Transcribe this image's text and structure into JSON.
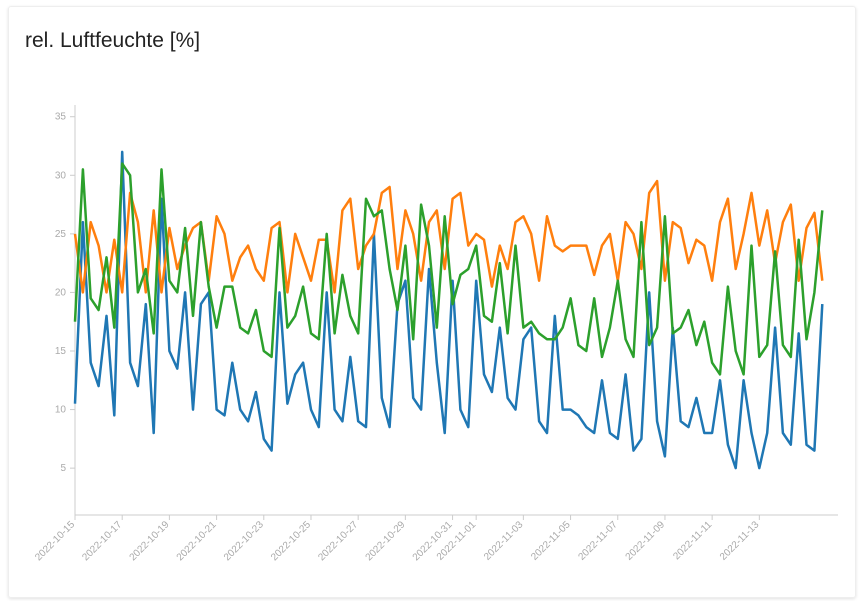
{
  "chart_data": {
    "type": "line",
    "title": "rel. Luftfeuchte [%]",
    "x": [
      "2022-10-15 00:00",
      "2022-10-15 08:00",
      "2022-10-15 16:00",
      "2022-10-16 00:00",
      "2022-10-16 08:00",
      "2022-10-16 16:00",
      "2022-10-17 00:00",
      "2022-10-17 08:00",
      "2022-10-17 16:00",
      "2022-10-18 00:00",
      "2022-10-18 08:00",
      "2022-10-18 16:00",
      "2022-10-19 00:00",
      "2022-10-19 08:00",
      "2022-10-19 16:00",
      "2022-10-20 00:00",
      "2022-10-20 08:00",
      "2022-10-20 16:00",
      "2022-10-21 00:00",
      "2022-10-21 08:00",
      "2022-10-21 16:00",
      "2022-10-22 00:00",
      "2022-10-22 08:00",
      "2022-10-22 16:00",
      "2022-10-23 00:00",
      "2022-10-23 08:00",
      "2022-10-23 16:00",
      "2022-10-24 00:00",
      "2022-10-24 08:00",
      "2022-10-24 16:00",
      "2022-10-25 00:00",
      "2022-10-25 08:00",
      "2022-10-25 16:00",
      "2022-10-26 00:00",
      "2022-10-26 08:00",
      "2022-10-26 16:00",
      "2022-10-27 00:00",
      "2022-10-27 08:00",
      "2022-10-27 16:00",
      "2022-10-28 00:00",
      "2022-10-28 08:00",
      "2022-10-28 16:00",
      "2022-10-29 00:00",
      "2022-10-29 08:00",
      "2022-10-29 16:00",
      "2022-10-30 00:00",
      "2022-10-30 08:00",
      "2022-10-30 16:00",
      "2022-10-31 00:00",
      "2022-10-31 08:00",
      "2022-10-31 16:00",
      "2022-11-01 00:00",
      "2022-11-01 08:00",
      "2022-11-01 16:00",
      "2022-11-02 00:00",
      "2022-11-02 08:00",
      "2022-11-02 16:00",
      "2022-11-03 00:00",
      "2022-11-03 08:00",
      "2022-11-03 16:00",
      "2022-11-04 00:00",
      "2022-11-04 08:00",
      "2022-11-04 16:00",
      "2022-11-05 00:00",
      "2022-11-05 08:00",
      "2022-11-05 16:00",
      "2022-11-06 00:00",
      "2022-11-06 08:00",
      "2022-11-06 16:00",
      "2022-11-07 00:00",
      "2022-11-07 08:00",
      "2022-11-07 16:00",
      "2022-11-08 00:00",
      "2022-11-08 08:00",
      "2022-11-08 16:00",
      "2022-11-09 00:00",
      "2022-11-09 08:00",
      "2022-11-09 16:00",
      "2022-11-10 00:00",
      "2022-11-10 08:00",
      "2022-11-10 16:00",
      "2022-11-11 00:00",
      "2022-11-11 08:00",
      "2022-11-11 16:00",
      "2022-11-12 00:00",
      "2022-11-12 08:00",
      "2022-11-12 16:00",
      "2022-11-13 00:00",
      "2022-11-13 08:00",
      "2022-11-13 16:00",
      "2022-11-14 00:00",
      "2022-11-14 08:00",
      "2022-11-14 16:00",
      "2022-11-15 00:00",
      "2022-11-15 08:00",
      "2022-11-15 16:00"
    ],
    "series": [
      {
        "color": "#1f77b4",
        "values": [
          10.5,
          26,
          14,
          12,
          18,
          9.5,
          32,
          14,
          12,
          19,
          8,
          28,
          15,
          13.5,
          20,
          10,
          19,
          20,
          10,
          9.5,
          14,
          10,
          9,
          11.5,
          7.5,
          6.5,
          20,
          10.5,
          13,
          14,
          10,
          8.5,
          20,
          10,
          9,
          14.5,
          9,
          8.5,
          25,
          11,
          8.5,
          19,
          21,
          11,
          10,
          22,
          14,
          8,
          21,
          10,
          8.5,
          21,
          13,
          11.5,
          17,
          11,
          10,
          16,
          17,
          9,
          8,
          18,
          10,
          10,
          9.5,
          8.5,
          8,
          12.5,
          8,
          7.5,
          13,
          6.5,
          7.5,
          20,
          9,
          6,
          17,
          9,
          8.5,
          11,
          8,
          8,
          12.5,
          7,
          5,
          12.5,
          8,
          5,
          8,
          17,
          8,
          7,
          16.5,
          7,
          6.5,
          19
        ]
      },
      {
        "color": "#ff7f0e",
        "values": [
          25,
          20,
          26,
          24,
          20,
          24.5,
          20,
          28.5,
          26,
          20,
          27,
          20,
          25.5,
          22,
          24,
          25.5,
          26,
          21,
          26.5,
          25,
          21,
          23,
          24,
          22,
          21,
          25.5,
          26,
          20,
          25,
          23,
          21,
          24.5,
          24.5,
          20,
          27,
          28,
          22,
          24,
          25,
          28.5,
          29,
          22,
          27,
          25,
          21,
          26,
          27,
          22,
          28,
          28.5,
          24,
          25,
          24.5,
          20.5,
          24,
          22,
          26,
          26.5,
          25,
          21,
          26.5,
          24,
          23.5,
          24,
          24,
          24,
          21.5,
          24,
          25,
          21,
          26,
          25,
          22,
          28.5,
          29.5,
          21,
          26,
          25.5,
          22.5,
          24.5,
          24,
          21,
          26,
          28,
          22,
          25,
          28.5,
          24,
          27,
          22.5,
          26,
          27.5,
          21,
          25.5,
          26.8,
          21
        ]
      },
      {
        "color": "#2ca02c",
        "values": [
          17.5,
          30.5,
          19.5,
          18.5,
          23,
          17,
          31,
          30,
          20,
          22,
          16.5,
          30.5,
          21,
          20,
          25.5,
          18,
          26,
          20.5,
          17,
          20.5,
          20.5,
          17,
          16.5,
          18.5,
          15,
          14.5,
          25.5,
          17,
          18,
          20.5,
          16.5,
          16,
          25,
          16.5,
          21.5,
          18,
          16.5,
          28,
          26.5,
          27,
          22,
          18.5,
          24,
          16,
          27.5,
          24,
          17,
          26.5,
          19,
          21.5,
          22,
          24,
          18,
          17.5,
          22.5,
          16.5,
          24,
          17,
          17.5,
          16.5,
          16,
          16,
          17,
          19.5,
          15.5,
          15,
          19.5,
          14.5,
          17,
          21,
          16,
          14.5,
          26,
          15.5,
          17,
          26.5,
          16.5,
          17,
          18.5,
          15.5,
          17.5,
          14,
          13,
          20.5,
          15,
          13,
          24,
          14.5,
          15.5,
          23.5,
          15.5,
          14.5,
          24.5,
          16,
          20,
          27
        ]
      }
    ],
    "xlim": [
      "2022-10-15 00:00",
      "2022-11-16 08:00"
    ],
    "xticks": [
      "2022-10-15",
      "2022-10-17",
      "2022-10-19",
      "2022-10-21",
      "2022-10-23",
      "2022-10-25",
      "2022-10-27",
      "2022-10-29",
      "2022-10-31",
      "2022-11-01",
      "2022-11-03",
      "2022-11-05",
      "2022-11-07",
      "2022-11-09",
      "2022-11-11",
      "2022-11-13"
    ],
    "ylim": [
      1,
      36
    ],
    "yticks": [
      5,
      10,
      15,
      20,
      25,
      30,
      35
    ]
  }
}
